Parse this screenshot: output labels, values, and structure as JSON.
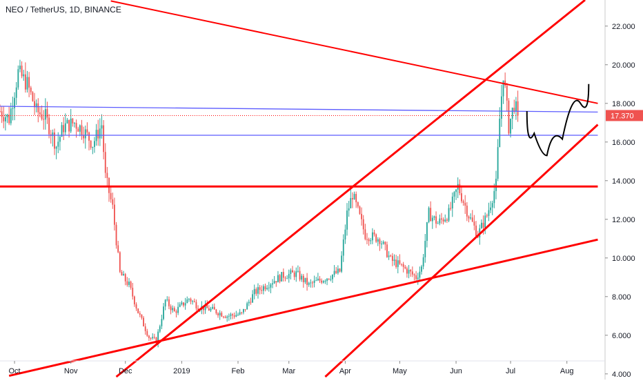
{
  "header": {
    "symbol_title": "NEO / TetherUS, 1D, BINANCE"
  },
  "colors": {
    "up": "#26a69a",
    "down": "#ef5350",
    "trendline": "#ff0000",
    "blue_line": "#5b5bff",
    "curve": "#000000",
    "price_label_bg": "#ef5350",
    "grid": "#f0f3fa",
    "axis_text": "#131722"
  },
  "chart_data": {
    "type": "candlestick",
    "title": "NEO / TetherUS, 1D, BINANCE",
    "ylim": [
      3.85,
      23.35
    ],
    "y_ticks": [
      "22.000",
      "20.000",
      "18.000",
      "16.000",
      "14.000",
      "12.000",
      "10.000",
      "8.000",
      "6.000",
      "4.000"
    ],
    "y_tick_values": [
      22,
      20,
      18,
      16,
      14,
      12,
      10,
      8,
      6,
      4
    ],
    "x_range": [
      "2018-09-23",
      "2019-08-22"
    ],
    "x_ticks": [
      {
        "label": "Oct",
        "date": "2018-10-01"
      },
      {
        "label": "Nov",
        "date": "2018-11-01"
      },
      {
        "label": "Dec",
        "date": "2018-12-01"
      },
      {
        "label": "2019",
        "date": "2019-01-01"
      },
      {
        "label": "Feb",
        "date": "2019-02-01"
      },
      {
        "label": "Mar",
        "date": "2019-03-01"
      },
      {
        "label": "Apr",
        "date": "2019-04-01"
      },
      {
        "label": "May",
        "date": "2019-05-01"
      },
      {
        "label": "Jun",
        "date": "2019-06-01"
      },
      {
        "label": "Jul",
        "date": "2019-07-01"
      },
      {
        "label": "Aug",
        "date": "2019-08-01"
      }
    ],
    "last_price": "17.370",
    "last_price_value": 17.37,
    "price_anchors": [
      [
        "2018-09-23",
        17.6
      ],
      [
        "2018-09-28",
        17.2
      ],
      [
        "2018-10-03",
        19.6
      ],
      [
        "2018-10-08",
        19.0
      ],
      [
        "2018-10-13",
        17.6
      ],
      [
        "2018-10-18",
        17.3
      ],
      [
        "2018-10-24",
        15.8
      ],
      [
        "2018-10-28",
        16.8
      ],
      [
        "2018-11-03",
        17.0
      ],
      [
        "2018-11-08",
        16.6
      ],
      [
        "2018-11-13",
        15.9
      ],
      [
        "2018-11-18",
        16.9
      ],
      [
        "2018-11-20",
        14.2
      ],
      [
        "2018-11-24",
        12.6
      ],
      [
        "2018-11-28",
        9.2
      ],
      [
        "2018-12-03",
        8.6
      ],
      [
        "2018-12-08",
        7.2
      ],
      [
        "2018-12-14",
        5.9
      ],
      [
        "2018-12-18",
        5.7
      ],
      [
        "2018-12-23",
        7.8
      ],
      [
        "2018-12-28",
        7.2
      ],
      [
        "2019-01-05",
        7.9
      ],
      [
        "2019-01-10",
        7.5
      ],
      [
        "2019-01-18",
        7.3
      ],
      [
        "2019-01-26",
        7.0
      ],
      [
        "2019-02-03",
        7.1
      ],
      [
        "2019-02-10",
        8.2
      ],
      [
        "2019-02-20",
        8.8
      ],
      [
        "2019-02-26",
        9.1
      ],
      [
        "2019-03-05",
        9.2
      ],
      [
        "2019-03-12",
        8.6
      ],
      [
        "2019-03-22",
        9.0
      ],
      [
        "2019-03-29",
        9.3
      ],
      [
        "2019-04-02",
        12.3
      ],
      [
        "2019-04-05",
        13.3
      ],
      [
        "2019-04-12",
        11.2
      ],
      [
        "2019-04-20",
        11.0
      ],
      [
        "2019-04-26",
        9.9
      ],
      [
        "2019-05-03",
        9.5
      ],
      [
        "2019-05-10",
        9.0
      ],
      [
        "2019-05-13",
        9.5
      ],
      [
        "2019-05-17",
        12.3
      ],
      [
        "2019-05-22",
        11.8
      ],
      [
        "2019-05-28",
        12.3
      ],
      [
        "2019-06-02",
        13.7
      ],
      [
        "2019-06-08",
        12.2
      ],
      [
        "2019-06-13",
        11.2
      ],
      [
        "2019-06-18",
        12.2
      ],
      [
        "2019-06-23",
        13.8
      ],
      [
        "2019-06-25",
        17.2
      ],
      [
        "2019-06-27",
        19.6
      ],
      [
        "2019-06-30",
        16.8
      ],
      [
        "2019-07-03",
        18.0
      ],
      [
        "2019-07-05",
        17.37
      ]
    ],
    "lines": [
      {
        "name": "",
        "style": "red-thin",
        "from": [
          "2018-11-23",
          23.3
        ],
        "to": [
          "2019-08-18",
          18.0
        ]
      },
      {
        "name": "",
        "style": "blue",
        "from": [
          "2018-09-23",
          17.85
        ],
        "to": [
          "2019-08-18",
          17.55
        ]
      },
      {
        "name": "",
        "style": "blue",
        "from": [
          "2018-09-23",
          16.35
        ],
        "to": [
          "2019-08-18",
          16.35
        ]
      },
      {
        "name": "",
        "style": "red-thick",
        "from": [
          "2018-09-23",
          13.7
        ],
        "to": [
          "2019-08-18",
          13.7
        ]
      },
      {
        "name": "",
        "style": "red-thick",
        "from": [
          "2018-11-26",
          3.85
        ],
        "to": [
          "2019-08-11",
          23.35
        ]
      },
      {
        "name": "",
        "style": "red-thick",
        "from": [
          "2019-03-21",
          3.85
        ],
        "to": [
          "2019-08-18",
          16.9
        ]
      },
      {
        "name": "",
        "style": "red-thick",
        "from": [
          "2018-09-28",
          3.9
        ],
        "to": [
          "2019-08-18",
          10.95
        ]
      },
      {
        "name": "",
        "style": "red-dotted",
        "from": [
          "2018-09-23",
          17.37
        ],
        "to": [
          "2019-07-05",
          17.37
        ]
      }
    ],
    "projection_curve": [
      [
        "2019-07-10",
        17.6
      ],
      [
        "2019-07-18",
        15.3
      ],
      [
        "2019-07-24",
        15.3
      ],
      [
        "2019-08-04",
        17.0
      ],
      [
        "2019-08-13",
        19.0
      ]
    ],
    "grid": false,
    "legend": "none"
  }
}
